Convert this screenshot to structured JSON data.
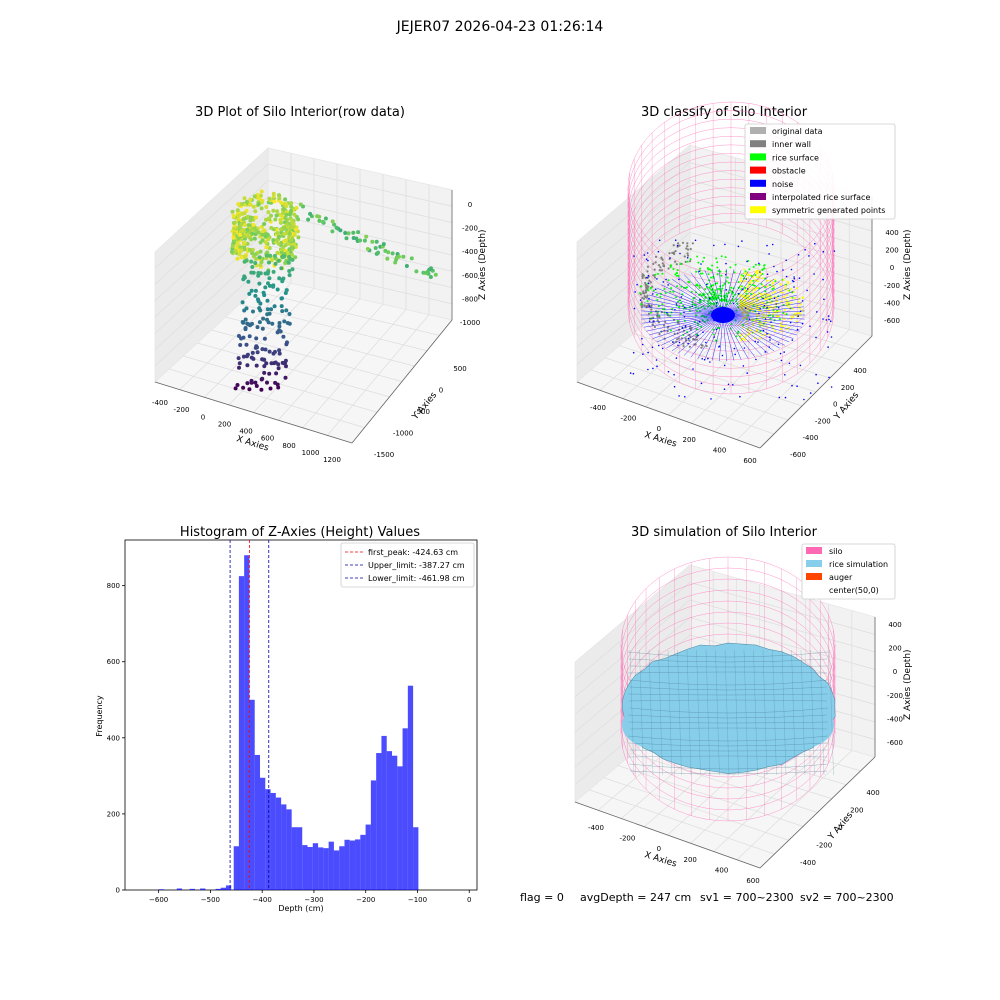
{
  "figure_title": "JEJER07 2026-04-23 01:26:14",
  "panels": {
    "raw": {
      "title": "3D Plot of Silo Interior(row data)",
      "xlabel": "X Axies",
      "ylabel": "Y Axies",
      "zlabel": "Z Axies (Depth)",
      "xticks": [
        "-400",
        "-200",
        "0",
        "200",
        "400",
        "600",
        "800",
        "1000",
        "1200"
      ],
      "yticks": [
        "500",
        "0",
        "-500",
        "-1000",
        "-1500"
      ],
      "zticks": [
        "0",
        "-200",
        "-400",
        "-600",
        "-800",
        "-1000"
      ]
    },
    "classify": {
      "title": "3D classify of Silo Interior",
      "xlabel": "X Axies",
      "ylabel": "Y Axies",
      "zlabel": "Z Axies (Depth)",
      "xticks": [
        "-400",
        "-200",
        "0",
        "200",
        "400",
        "600"
      ],
      "yticks": [
        "400",
        "200",
        "0",
        "-200",
        "-400",
        "-600"
      ],
      "zticks": [
        "400",
        "200",
        "0",
        "-200",
        "-400",
        "-600"
      ],
      "legend": [
        {
          "label": "original data",
          "color": "#b0b0b0"
        },
        {
          "label": "inner wall",
          "color": "#808080"
        },
        {
          "label": "rice surface",
          "color": "#00ff00"
        },
        {
          "label": "obstacle",
          "color": "#ff0000"
        },
        {
          "label": "noise",
          "color": "#0000ff"
        },
        {
          "label": "interpolated rice surface",
          "color": "#800080"
        },
        {
          "label": "symmetric generated points",
          "color": "#ffff00"
        }
      ]
    },
    "simulation": {
      "title": "3D simulation of Silo Interior",
      "xlabel": "X Axies",
      "ylabel": "Y Axies",
      "zlabel": "Z Axies (Depth)",
      "xticks": [
        "-400",
        "-200",
        "0",
        "200",
        "400",
        "600"
      ],
      "yticks": [
        "400",
        "200",
        "0",
        "-200",
        "-400"
      ],
      "zticks": [
        "400",
        "200",
        "0",
        "-200",
        "-400",
        "-600"
      ],
      "legend": [
        {
          "label": "silo",
          "color": "#ff69b4"
        },
        {
          "label": "rice simulation",
          "color": "#87ceeb"
        },
        {
          "label": "auger",
          "color": "#ff4500"
        },
        {
          "label": "center(50,0)",
          "color": ""
        }
      ]
    }
  },
  "status_line": {
    "flag": "flag = 0",
    "avg": "avgDepth = 247 cm",
    "sv1": "sv1 = 700~2300",
    "sv2": "sv2 = 700~2300"
  },
  "chart_data": {
    "type": "bar",
    "title": "Histogram of Z-Axies (Height) Values",
    "xlabel": "Depth (cm)",
    "ylabel": "Frequency",
    "xlim": [
      -665,
      15
    ],
    "ylim": [
      0,
      920
    ],
    "xticks": [
      -600,
      -500,
      -400,
      -300,
      -200,
      -100,
      0
    ],
    "yticks": [
      0,
      200,
      400,
      600,
      800
    ],
    "bin_width": 10.2,
    "bins": [
      {
        "x": -600,
        "value": 2
      },
      {
        "x": -565,
        "value": 4
      },
      {
        "x": -540,
        "value": 3
      },
      {
        "x": -520,
        "value": 4
      },
      {
        "x": -490,
        "value": 3
      },
      {
        "x": -480,
        "value": 6
      },
      {
        "x": -470,
        "value": 12
      },
      {
        "x": -455,
        "value": 115
      },
      {
        "x": -445,
        "value": 825
      },
      {
        "x": -434.8,
        "value": 880
      },
      {
        "x": -424.6,
        "value": 500
      },
      {
        "x": -414.4,
        "value": 355
      },
      {
        "x": -404.2,
        "value": 295
      },
      {
        "x": -394,
        "value": 265
      },
      {
        "x": -383.8,
        "value": 255
      },
      {
        "x": -373.6,
        "value": 243
      },
      {
        "x": -363.4,
        "value": 225
      },
      {
        "x": -353.2,
        "value": 212
      },
      {
        "x": -343,
        "value": 165
      },
      {
        "x": -332.8,
        "value": 165
      },
      {
        "x": -322.6,
        "value": 118
      },
      {
        "x": -312.4,
        "value": 113
      },
      {
        "x": -302.2,
        "value": 123
      },
      {
        "x": -292,
        "value": 112
      },
      {
        "x": -281.8,
        "value": 110
      },
      {
        "x": -271.6,
        "value": 127
      },
      {
        "x": -261.4,
        "value": 104
      },
      {
        "x": -251.2,
        "value": 115
      },
      {
        "x": -241,
        "value": 132
      },
      {
        "x": -230.8,
        "value": 130
      },
      {
        "x": -220.6,
        "value": 133
      },
      {
        "x": -210.4,
        "value": 145
      },
      {
        "x": -200.2,
        "value": 172
      },
      {
        "x": -190,
        "value": 288
      },
      {
        "x": -179.8,
        "value": 360
      },
      {
        "x": -169.6,
        "value": 405
      },
      {
        "x": -159.4,
        "value": 365
      },
      {
        "x": -149.2,
        "value": 353
      },
      {
        "x": -139,
        "value": 325
      },
      {
        "x": -128.8,
        "value": 425
      },
      {
        "x": -118.6,
        "value": 537
      },
      {
        "x": -108.4,
        "value": 165
      }
    ],
    "bar_color": "#0000ff",
    "bar_alpha": 0.7,
    "vlines": [
      {
        "label": "first_peak: -424.63 cm",
        "x": -424.63,
        "color": "#ff0000"
      },
      {
        "label": "Upper_limit: -387.27 cm",
        "x": -387.27,
        "color": "#0000aa"
      },
      {
        "label": "Lower_limit: -461.98 cm",
        "x": -461.98,
        "color": "#0000aa"
      }
    ],
    "legend_position": "top-right",
    "grid": false
  }
}
